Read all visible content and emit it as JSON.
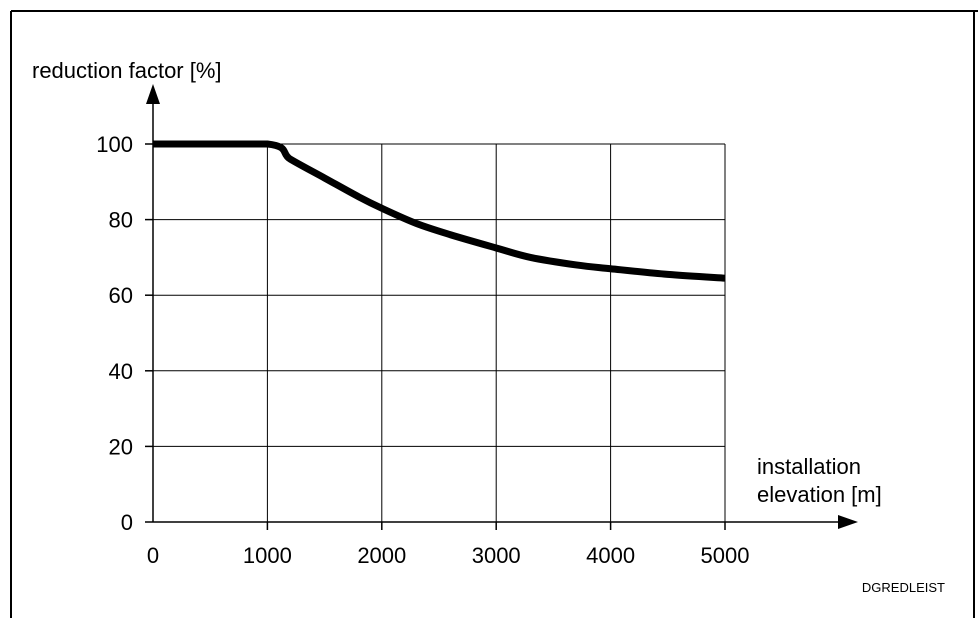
{
  "chart_data": {
    "type": "line",
    "title": "",
    "ylabel": "reduction factor [%]",
    "xlabel_lines": [
      "installation",
      "elevation [m]"
    ],
    "x_ticks": [
      "0",
      "1000",
      "2000",
      "3000",
      "4000",
      "5000"
    ],
    "y_ticks": [
      "0",
      "20",
      "40",
      "60",
      "80",
      "100"
    ],
    "xlim": [
      0,
      5000
    ],
    "ylim": [
      0,
      100
    ],
    "grid": true,
    "series": [
      {
        "x": [
          0,
          1000,
          1200,
          1500,
          1800,
          2000,
          2300,
          2600,
          3000,
          3300,
          3700,
          4000,
          4500,
          5000
        ],
        "values": [
          100,
          100,
          96,
          91,
          86,
          83,
          79,
          76,
          72.5,
          70,
          68,
          67,
          65.5,
          64.5
        ]
      }
    ],
    "figure_code": "DGREDLEIST",
    "line_color": "#000000"
  }
}
